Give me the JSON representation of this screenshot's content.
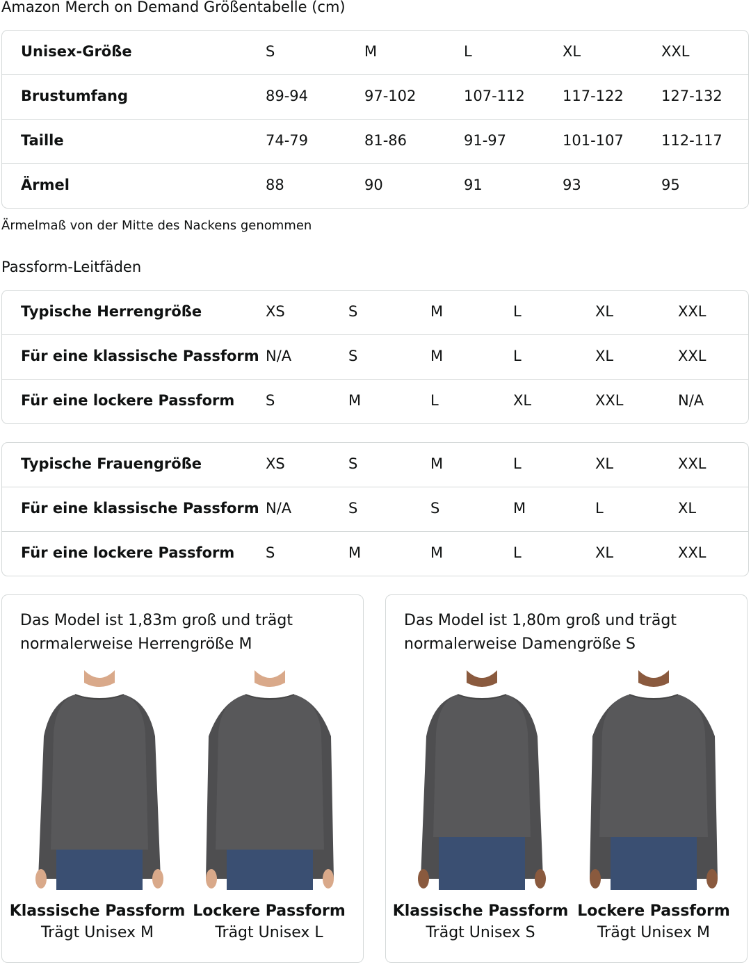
{
  "title": "Amazon Merch on Demand Größentabelle (cm)",
  "size_table": {
    "rows": [
      [
        "Unisex-Größe",
        "S",
        "M",
        "L",
        "XL",
        "XXL"
      ],
      [
        "Brustumfang",
        "89-94",
        "97-102",
        "107-112",
        "117-122",
        "127-132"
      ],
      [
        "Taille",
        "74-79",
        "81-86",
        "91-97",
        "101-107",
        "112-117"
      ],
      [
        "Ärmel",
        "88",
        "90",
        "91",
        "93",
        "95"
      ]
    ]
  },
  "note": "Ärmelmaß von der Mitte des Nackens genommen",
  "fit_title": "Passform-Leitfäden",
  "men_fit_table": {
    "rows": [
      [
        "Typische Herrengröße",
        "XS",
        "S",
        "M",
        "L",
        "XL",
        "XXL"
      ],
      [
        "Für eine klassische Passform",
        "N/A",
        "S",
        "M",
        "L",
        "XL",
        "XXL"
      ],
      [
        "Für eine lockere Passform",
        "S",
        "M",
        "L",
        "XL",
        "XXL",
        "N/A"
      ]
    ]
  },
  "women_fit_table": {
    "rows": [
      [
        "Typische Frauengröße",
        "XS",
        "S",
        "M",
        "L",
        "XL",
        "XXL"
      ],
      [
        "Für eine klassische Passform",
        "N/A",
        "S",
        "S",
        "M",
        "L",
        "XL"
      ],
      [
        "Für eine lockere Passform",
        "S",
        "M",
        "M",
        "L",
        "XL",
        "XXL"
      ]
    ]
  },
  "cards": [
    {
      "desc_line1": "Das Model ist 1,83m groß und trägt",
      "desc_line2": "normalerweise Herrengröße M",
      "models": [
        {
          "fit": "Klassische Passform",
          "wears": "Trägt Unisex M"
        },
        {
          "fit": "Lockere Passform",
          "wears": "Trägt Unisex L"
        }
      ]
    },
    {
      "desc_line1": "Das Model ist 1,80m groß und trägt",
      "desc_line2": "normalerweise Damengröße S",
      "models": [
        {
          "fit": "Klassische Passform",
          "wears": "Trägt Unisex S"
        },
        {
          "fit": "Lockere Passform",
          "wears": "Trägt Unisex M"
        }
      ]
    }
  ],
  "colors": {
    "shirt": "#58585a",
    "jeans": "#3a4f72",
    "skin_men": "#d9a98a",
    "skin_women": "#8a5a3e",
    "border": "#d5d9d9"
  }
}
